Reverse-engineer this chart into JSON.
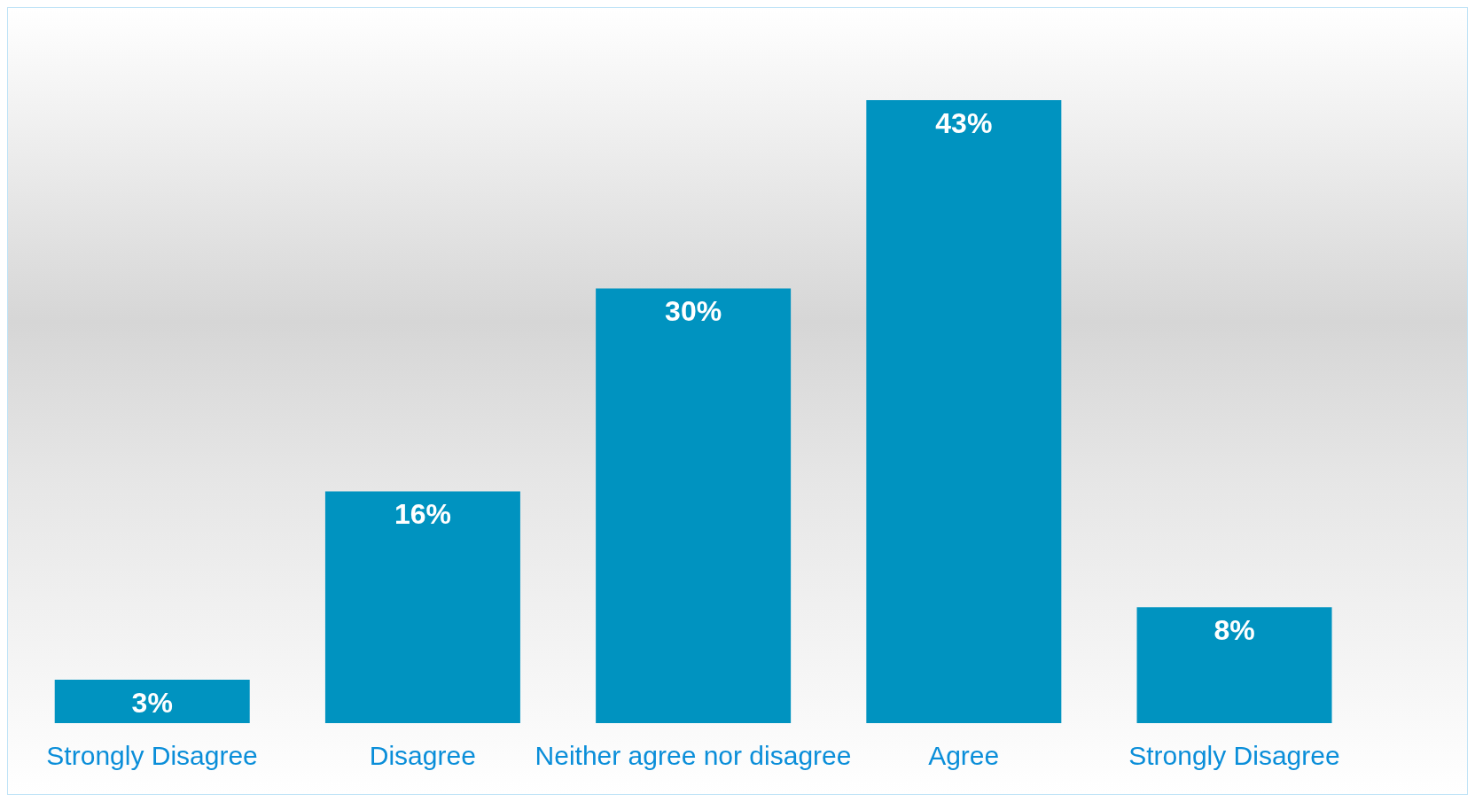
{
  "chart_data": {
    "type": "bar",
    "categories": [
      "Strongly Disagree",
      "Disagree",
      "Neither agree nor disagree",
      "Agree",
      "Strongly Disagree"
    ],
    "values": [
      3,
      16,
      30,
      43,
      8
    ],
    "value_labels": [
      "3%",
      "16%",
      "30%",
      "43%",
      "8%"
    ],
    "color": "#0093c0"
  }
}
